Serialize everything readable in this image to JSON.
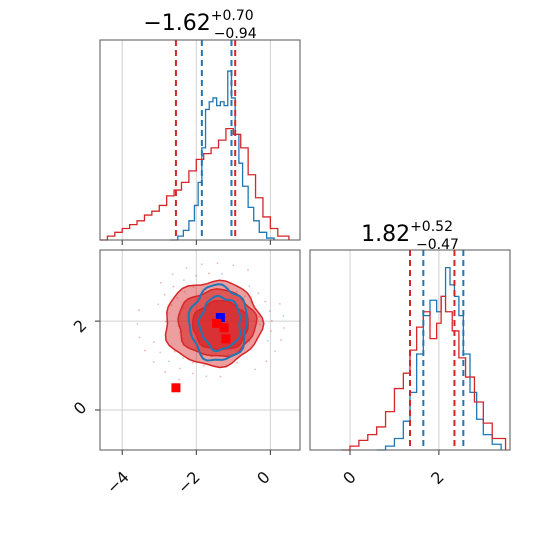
{
  "chart_data": [
    {
      "panel": "marginal-x",
      "type": "histogram",
      "title": {
        "main": "−1.62",
        "sup": "+0.70",
        "sub": "−0.94"
      },
      "xlim": [
        -4.6,
        0.8
      ],
      "grid": true,
      "series": [
        {
          "color": "#1f77b4",
          "bins": [
            [
              -2.7,
              0.0
            ],
            [
              -2.5,
              0.02
            ],
            [
              -2.35,
              0.05
            ],
            [
              -2.2,
              0.1
            ],
            [
              -2.05,
              0.18
            ],
            [
              -1.95,
              0.3
            ],
            [
              -1.85,
              0.48
            ],
            [
              -1.75,
              0.68
            ],
            [
              -1.65,
              0.72
            ],
            [
              -1.55,
              0.74
            ],
            [
              -1.45,
              0.7
            ],
            [
              -1.35,
              0.72
            ],
            [
              -1.25,
              0.7
            ],
            [
              -1.15,
              0.88
            ],
            [
              -1.05,
              0.74
            ],
            [
              -0.95,
              0.55
            ],
            [
              -0.85,
              0.4
            ],
            [
              -0.75,
              0.28
            ],
            [
              -0.6,
              0.17
            ],
            [
              -0.45,
              0.1
            ],
            [
              -0.3,
              0.04
            ],
            [
              -0.1,
              0.01
            ],
            [
              0.1,
              0.0
            ]
          ]
        },
        {
          "color": "#d62728",
          "bins": [
            [
              -4.6,
              0.0
            ],
            [
              -4.4,
              0.02
            ],
            [
              -4.2,
              0.04
            ],
            [
              -4.0,
              0.06
            ],
            [
              -3.8,
              0.08
            ],
            [
              -3.6,
              0.1
            ],
            [
              -3.4,
              0.13
            ],
            [
              -3.2,
              0.15
            ],
            [
              -3.0,
              0.18
            ],
            [
              -2.8,
              0.23
            ],
            [
              -2.6,
              0.26
            ],
            [
              -2.4,
              0.3
            ],
            [
              -2.2,
              0.36
            ],
            [
              -2.0,
              0.42
            ],
            [
              -1.8,
              0.45
            ],
            [
              -1.6,
              0.48
            ],
            [
              -1.4,
              0.52
            ],
            [
              -1.2,
              0.58
            ],
            [
              -1.0,
              0.55
            ],
            [
              -0.8,
              0.48
            ],
            [
              -0.6,
              0.34
            ],
            [
              -0.4,
              0.22
            ],
            [
              -0.2,
              0.12
            ],
            [
              0.0,
              0.06
            ],
            [
              0.2,
              0.02
            ],
            [
              0.5,
              0.0
            ]
          ]
        }
      ],
      "quantiles": [
        {
          "color": "#1f77b4",
          "x": [
            -1.85,
            -1.05
          ]
        },
        {
          "color": "#d62728",
          "x": [
            -2.55,
            -0.95
          ]
        }
      ]
    },
    {
      "panel": "joint",
      "type": "contour",
      "xlim": [
        -4.6,
        0.8
      ],
      "ylim": [
        -0.9,
        3.6
      ],
      "xticks": [
        -4,
        -2,
        0
      ],
      "xtick_labels": [
        "−4",
        "−2",
        "0"
      ],
      "yticks": [
        0,
        2
      ],
      "ytick_labels": [
        "0",
        "2"
      ],
      "grid": true,
      "contours": {
        "red": {
          "color": "#d62728",
          "fill_levels": [
            {
              "center": [
                -1.55,
                1.95
              ],
              "rx": 1.3,
              "ry": 0.95,
              "opacity": 0.45
            },
            {
              "center": [
                -1.45,
                1.95
              ],
              "rx": 1.05,
              "ry": 0.75,
              "opacity": 0.6
            },
            {
              "center": [
                -1.35,
                1.9
              ],
              "rx": 0.75,
              "ry": 0.55,
              "opacity": 0.75
            }
          ]
        },
        "blue": {
          "color": "#1f77b4",
          "levels": [
            {
              "center": [
                -1.4,
                1.95
              ],
              "rx": 0.78,
              "ry": 0.85
            },
            {
              "center": [
                -1.35,
                1.95
              ],
              "rx": 0.55,
              "ry": 0.6
            }
          ]
        }
      },
      "markers": [
        {
          "color": "#0000ff",
          "x": -1.35,
          "y": 2.08
        },
        {
          "color": "#ff0000",
          "x": -1.2,
          "y": 1.6
        },
        {
          "color": "#ff0000",
          "x": -1.25,
          "y": 1.85
        },
        {
          "color": "#ff0000",
          "x": -2.55,
          "y": 0.5
        },
        {
          "color": "#ff0000",
          "x": -1.45,
          "y": 1.95
        }
      ]
    },
    {
      "panel": "marginal-y",
      "type": "histogram",
      "title": {
        "main": "1.82",
        "sup": "+0.52",
        "sub": "−0.47"
      },
      "xlim": [
        -0.9,
        3.6
      ],
      "xticks": [
        0,
        2
      ],
      "xtick_labels": [
        "0",
        "2"
      ],
      "grid": true,
      "series": [
        {
          "color": "#1f77b4",
          "bins": [
            [
              0.6,
              0.0
            ],
            [
              0.8,
              0.02
            ],
            [
              1.0,
              0.06
            ],
            [
              1.2,
              0.15
            ],
            [
              1.35,
              0.3
            ],
            [
              1.5,
              0.5
            ],
            [
              1.65,
              0.7
            ],
            [
              1.8,
              0.78
            ],
            [
              1.95,
              0.72
            ],
            [
              2.05,
              0.8
            ],
            [
              2.15,
              0.95
            ],
            [
              2.25,
              0.86
            ],
            [
              2.35,
              0.8
            ],
            [
              2.45,
              0.7
            ],
            [
              2.55,
              0.5
            ],
            [
              2.7,
              0.3
            ],
            [
              2.85,
              0.16
            ],
            [
              3.0,
              0.08
            ],
            [
              3.2,
              0.03
            ],
            [
              3.4,
              0.0
            ]
          ]
        },
        {
          "color": "#d62728",
          "bins": [
            [
              -0.2,
              0.0
            ],
            [
              0.0,
              0.02
            ],
            [
              0.2,
              0.05
            ],
            [
              0.4,
              0.08
            ],
            [
              0.6,
              0.12
            ],
            [
              0.8,
              0.2
            ],
            [
              1.0,
              0.32
            ],
            [
              1.2,
              0.4
            ],
            [
              1.35,
              0.52
            ],
            [
              1.5,
              0.64
            ],
            [
              1.65,
              0.72
            ],
            [
              1.8,
              0.58
            ],
            [
              1.95,
              0.66
            ],
            [
              2.05,
              0.8
            ],
            [
              2.15,
              0.72
            ],
            [
              2.3,
              0.62
            ],
            [
              2.45,
              0.48
            ],
            [
              2.6,
              0.38
            ],
            [
              2.8,
              0.25
            ],
            [
              3.0,
              0.14
            ],
            [
              3.2,
              0.06
            ],
            [
              3.5,
              0.0
            ]
          ]
        }
      ],
      "quantiles": [
        {
          "color": "#1f77b4",
          "x": [
            1.65,
            2.55
          ]
        },
        {
          "color": "#d62728",
          "x": [
            1.35,
            2.35
          ]
        }
      ]
    }
  ]
}
